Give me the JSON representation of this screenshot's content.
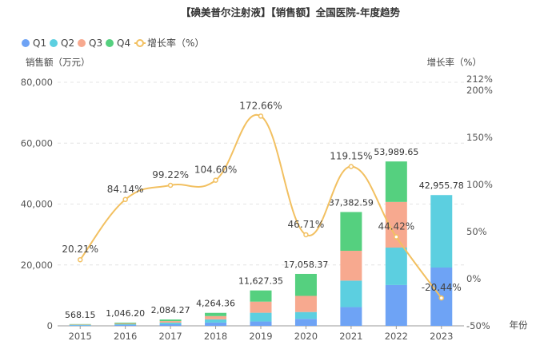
{
  "chart_data": {
    "type": "bar",
    "title": "【碘美普尔注射液】【销售额】全国医院-年度趋势",
    "xlabel": "年份",
    "ylabel": "销售额（万元）",
    "y2label": "增长率（%）",
    "categories": [
      "2015",
      "2016",
      "2017",
      "2018",
      "2019",
      "2020",
      "2021",
      "2022",
      "2023"
    ],
    "ylim": [
      0,
      80000
    ],
    "yticks": [
      0,
      20000,
      40000,
      60000,
      80000
    ],
    "ytick_labels": [
      "0",
      "20,000",
      "40,000",
      "60,000",
      "80,000"
    ],
    "y2lim": [
      -50,
      212
    ],
    "y2ticks": [
      -50,
      0,
      50,
      100,
      150,
      200,
      212
    ],
    "y2tick_labels": [
      "-50%",
      "0%",
      "50%",
      "100%",
      "150%",
      "200%",
      "212%"
    ],
    "series": [
      {
        "name": "Q1",
        "type": "bar",
        "stack": "total",
        "color": "#6ea3f5",
        "values": [
          150,
          260,
          520,
          1070,
          1430,
          2290,
          6150,
          13400,
          19150
        ]
      },
      {
        "name": "Q2",
        "type": "bar",
        "stack": "total",
        "color": "#5ccfe0",
        "values": [
          140,
          260,
          520,
          1060,
          2870,
          2250,
          8700,
          12300,
          23806
        ]
      },
      {
        "name": "Q3",
        "type": "bar",
        "stack": "total",
        "color": "#f7a98f",
        "values": [
          140,
          260,
          520,
          1070,
          3650,
          5300,
          9800,
          15000,
          0
        ]
      },
      {
        "name": "Q4",
        "type": "bar",
        "stack": "total",
        "color": "#55d07f",
        "values": [
          138,
          266,
          524,
          1064,
          3677,
          7218,
          12733,
          13290,
          0
        ]
      },
      {
        "name": "增长率（%）",
        "type": "line",
        "axis": "right",
        "color": "#f2c061",
        "values": [
          20.21,
          84.14,
          99.22,
          104.6,
          172.66,
          46.71,
          119.15,
          44.42,
          -20.44
        ]
      }
    ],
    "totals": [
      568.15,
      1046.2,
      2084.27,
      4264.36,
      11627.35,
      17058.37,
      37382.59,
      53989.65,
      42955.78
    ],
    "total_labels": [
      "568.15",
      "1,046.20",
      "2,084.27",
      "4,264.36",
      "11,627.35",
      "17,058.37",
      "37,382.59",
      "53,989.65",
      "42,955.78"
    ],
    "growth_labels": [
      "20.21%",
      "84.14%",
      "99.22%",
      "104.60%",
      "172.66%",
      "46.71%",
      "119.15%",
      "44.42%",
      "-20.44%"
    ],
    "legend": [
      "Q1",
      "Q2",
      "Q3",
      "Q4",
      "增长率（%）"
    ],
    "legend_position": "top-left",
    "grid": true
  }
}
